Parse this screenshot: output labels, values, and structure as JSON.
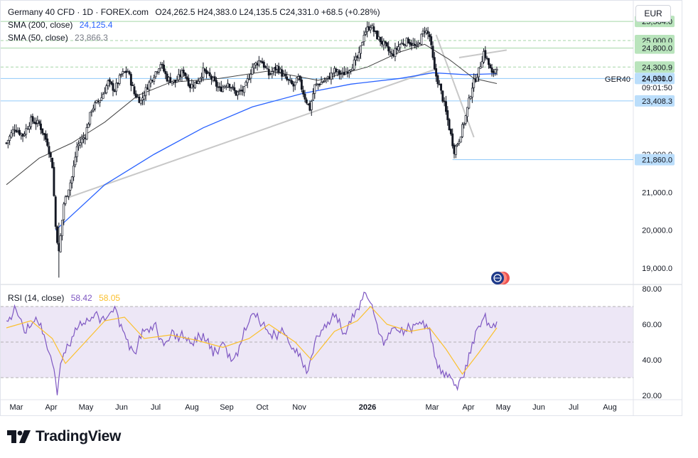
{
  "header": {
    "title": "Germany 40 CFD · 1D · FOREX.com",
    "ohlc": "O24,262.5  H24,383.0  L24,135.5  C24,331.0  +68.5 (+0.28%)",
    "sma200_label": "SMA (200, close)",
    "sma200_value": "24,125.4",
    "sma50_label": "SMA (50, close)",
    "sma50_value": "23,866.3",
    "currency": "EUR"
  },
  "rsi_legend": {
    "label": "RSI (14, close)",
    "value1": "58.42",
    "value2": "58.05"
  },
  "brand": {
    "name": "TradingView"
  },
  "colors": {
    "up": "#26a69a",
    "down": "#131722",
    "candle": "#131722",
    "sma200": "#2962ff",
    "sma50": "#444444",
    "trendline": "#c8c8c8",
    "rsi": "#7e57c2",
    "rsi_ma": "#fbc02d",
    "rsi_band": "#ede7f6",
    "level_green": "#a5d6a7",
    "level_blue": "#90caf9"
  },
  "chart_data": [
    {
      "type": "candlestick",
      "symbol": "GER40",
      "x_ticks": [
        "Mar",
        "Apr",
        "May",
        "Jun",
        "Jul",
        "Aug",
        "Sep",
        "Oct",
        "Nov",
        "2026",
        "Mar",
        "Apr",
        "May",
        "Jun",
        "Jul",
        "Aug"
      ],
      "y_ticks": [
        "22,000.0",
        "21,000.0",
        "20,000.0",
        "19,000.0"
      ],
      "ylim": [
        18700,
        25900
      ],
      "last_price": "24,331.0",
      "countdown": "09:01:50",
      "price_labels": [
        {
          "text": "25,504.0",
          "value": 25504,
          "style": "green"
        },
        {
          "text": "25,000.0",
          "value": 25000,
          "style": "green"
        },
        {
          "text": "24,800.0",
          "value": 24800,
          "style": "green"
        },
        {
          "text": "24,300.9",
          "value": 24300.9,
          "style": "green"
        },
        {
          "text": "24,000.0",
          "value": 24000,
          "style": "blue"
        },
        {
          "text": "23,408.3",
          "value": 23408.3,
          "style": "blue"
        },
        {
          "text": "21,860.0",
          "value": 21860,
          "style": "blue"
        }
      ],
      "series_close": [
        {
          "t": 0,
          "v": 22300
        },
        {
          "t": 5,
          "v": 22700
        },
        {
          "t": 10,
          "v": 22500
        },
        {
          "t": 15,
          "v": 22900
        },
        {
          "t": 20,
          "v": 22800
        },
        {
          "t": 25,
          "v": 22300
        },
        {
          "t": 28,
          "v": 21700
        },
        {
          "t": 30,
          "v": 20100
        },
        {
          "t": 32,
          "v": 19400
        },
        {
          "t": 35,
          "v": 20700
        },
        {
          "t": 40,
          "v": 21400
        },
        {
          "t": 43,
          "v": 22200
        },
        {
          "t": 48,
          "v": 22500
        },
        {
          "t": 52,
          "v": 23200
        },
        {
          "t": 58,
          "v": 23500
        },
        {
          "t": 62,
          "v": 23900
        },
        {
          "t": 66,
          "v": 23700
        },
        {
          "t": 70,
          "v": 24100
        },
        {
          "t": 74,
          "v": 24200
        },
        {
          "t": 78,
          "v": 23600
        },
        {
          "t": 82,
          "v": 23400
        },
        {
          "t": 86,
          "v": 23800
        },
        {
          "t": 90,
          "v": 24100
        },
        {
          "t": 94,
          "v": 24400
        },
        {
          "t": 98,
          "v": 24000
        },
        {
          "t": 103,
          "v": 23900
        },
        {
          "t": 108,
          "v": 24200
        },
        {
          "t": 112,
          "v": 23800
        },
        {
          "t": 116,
          "v": 23900
        },
        {
          "t": 120,
          "v": 24200
        },
        {
          "t": 125,
          "v": 24000
        },
        {
          "t": 130,
          "v": 23700
        },
        {
          "t": 135,
          "v": 23900
        },
        {
          "t": 140,
          "v": 23600
        },
        {
          "t": 145,
          "v": 23700
        },
        {
          "t": 150,
          "v": 24300
        },
        {
          "t": 155,
          "v": 24500
        },
        {
          "t": 160,
          "v": 24100
        },
        {
          "t": 165,
          "v": 24300
        },
        {
          "t": 170,
          "v": 24000
        },
        {
          "t": 175,
          "v": 23800
        },
        {
          "t": 178,
          "v": 24000
        },
        {
          "t": 182,
          "v": 23500
        },
        {
          "t": 185,
          "v": 23200
        },
        {
          "t": 188,
          "v": 23800
        },
        {
          "t": 192,
          "v": 23900
        },
        {
          "t": 196,
          "v": 24000
        },
        {
          "t": 200,
          "v": 24200
        },
        {
          "t": 205,
          "v": 24100
        },
        {
          "t": 210,
          "v": 24300
        },
        {
          "t": 215,
          "v": 24600
        },
        {
          "t": 218,
          "v": 25200
        },
        {
          "t": 222,
          "v": 25400
        },
        {
          "t": 226,
          "v": 25100
        },
        {
          "t": 230,
          "v": 24900
        },
        {
          "t": 235,
          "v": 24600
        },
        {
          "t": 240,
          "v": 24900
        },
        {
          "t": 245,
          "v": 25000
        },
        {
          "t": 250,
          "v": 24800
        },
        {
          "t": 255,
          "v": 25300
        },
        {
          "t": 258,
          "v": 25100
        },
        {
          "t": 261,
          "v": 24200
        },
        {
          "t": 264,
          "v": 23800
        },
        {
          "t": 267,
          "v": 23300
        },
        {
          "t": 270,
          "v": 22700
        },
        {
          "t": 273,
          "v": 22100
        },
        {
          "t": 276,
          "v": 22400
        },
        {
          "t": 280,
          "v": 23000
        },
        {
          "t": 284,
          "v": 23800
        },
        {
          "t": 288,
          "v": 24200
        },
        {
          "t": 291,
          "v": 24700
        },
        {
          "t": 293,
          "v": 24500
        },
        {
          "t": 296,
          "v": 24100
        },
        {
          "t": 299,
          "v": 24331
        }
      ],
      "sma200": [
        {
          "t": 30,
          "v": 20000
        },
        {
          "t": 60,
          "v": 21200
        },
        {
          "t": 90,
          "v": 22000
        },
        {
          "t": 120,
          "v": 22700
        },
        {
          "t": 150,
          "v": 23250
        },
        {
          "t": 180,
          "v": 23600
        },
        {
          "t": 210,
          "v": 23850
        },
        {
          "t": 240,
          "v": 24000
        },
        {
          "t": 260,
          "v": 24150
        },
        {
          "t": 280,
          "v": 24100
        },
        {
          "t": 299,
          "v": 24125.4
        }
      ],
      "sma50": [
        {
          "t": 0,
          "v": 21200
        },
        {
          "t": 20,
          "v": 21900
        },
        {
          "t": 40,
          "v": 22300
        },
        {
          "t": 60,
          "v": 22850
        },
        {
          "t": 80,
          "v": 23550
        },
        {
          "t": 100,
          "v": 23900
        },
        {
          "t": 130,
          "v": 24000
        },
        {
          "t": 160,
          "v": 24200
        },
        {
          "t": 190,
          "v": 23950
        },
        {
          "t": 220,
          "v": 24300
        },
        {
          "t": 240,
          "v": 24700
        },
        {
          "t": 255,
          "v": 24900
        },
        {
          "t": 270,
          "v": 24500
        },
        {
          "t": 285,
          "v": 24000
        },
        {
          "t": 299,
          "v": 23866.3
        }
      ],
      "trendlines": [
        {
          "from": {
            "t": 37,
            "v": 20850
          },
          "to": {
            "t": 262,
            "v": 24250
          }
        },
        {
          "from": {
            "t": 276,
            "v": 24550
          },
          "to": {
            "t": 305,
            "v": 24750
          }
        },
        {
          "from": {
            "t": 262,
            "v": 25150
          },
          "to": {
            "t": 285,
            "v": 22450
          }
        }
      ]
    },
    {
      "type": "line",
      "indicator": "RSI (14, close)",
      "y_ticks": [
        "80.00",
        "60.00",
        "40.00",
        "20.00"
      ],
      "ylim": [
        18,
        82
      ],
      "band": [
        30,
        70
      ],
      "midline": 50,
      "rsi": [
        {
          "t": 0,
          "v": 62
        },
        {
          "t": 6,
          "v": 68
        },
        {
          "t": 12,
          "v": 55
        },
        {
          "t": 18,
          "v": 64
        },
        {
          "t": 24,
          "v": 50
        },
        {
          "t": 28,
          "v": 38
        },
        {
          "t": 31,
          "v": 24
        },
        {
          "t": 34,
          "v": 40
        },
        {
          "t": 38,
          "v": 48
        },
        {
          "t": 42,
          "v": 58
        },
        {
          "t": 48,
          "v": 60
        },
        {
          "t": 54,
          "v": 66
        },
        {
          "t": 60,
          "v": 62
        },
        {
          "t": 66,
          "v": 70
        },
        {
          "t": 72,
          "v": 55
        },
        {
          "t": 78,
          "v": 44
        },
        {
          "t": 84,
          "v": 56
        },
        {
          "t": 90,
          "v": 60
        },
        {
          "t": 96,
          "v": 48
        },
        {
          "t": 102,
          "v": 56
        },
        {
          "t": 108,
          "v": 52
        },
        {
          "t": 114,
          "v": 48
        },
        {
          "t": 120,
          "v": 55
        },
        {
          "t": 126,
          "v": 42
        },
        {
          "t": 132,
          "v": 50
        },
        {
          "t": 138,
          "v": 40
        },
        {
          "t": 144,
          "v": 52
        },
        {
          "t": 150,
          "v": 66
        },
        {
          "t": 156,
          "v": 60
        },
        {
          "t": 162,
          "v": 52
        },
        {
          "t": 168,
          "v": 58
        },
        {
          "t": 174,
          "v": 46
        },
        {
          "t": 180,
          "v": 40
        },
        {
          "t": 184,
          "v": 34
        },
        {
          "t": 188,
          "v": 50
        },
        {
          "t": 194,
          "v": 60
        },
        {
          "t": 200,
          "v": 64
        },
        {
          "t": 206,
          "v": 55
        },
        {
          "t": 212,
          "v": 64
        },
        {
          "t": 218,
          "v": 78
        },
        {
          "t": 222,
          "v": 72
        },
        {
          "t": 226,
          "v": 60
        },
        {
          "t": 230,
          "v": 48
        },
        {
          "t": 236,
          "v": 58
        },
        {
          "t": 242,
          "v": 54
        },
        {
          "t": 248,
          "v": 60
        },
        {
          "t": 254,
          "v": 62
        },
        {
          "t": 258,
          "v": 58
        },
        {
          "t": 262,
          "v": 40
        },
        {
          "t": 266,
          "v": 34
        },
        {
          "t": 270,
          "v": 32
        },
        {
          "t": 274,
          "v": 26
        },
        {
          "t": 278,
          "v": 30
        },
        {
          "t": 282,
          "v": 44
        },
        {
          "t": 286,
          "v": 56
        },
        {
          "t": 290,
          "v": 62
        },
        {
          "t": 292,
          "v": 66
        },
        {
          "t": 295,
          "v": 58
        },
        {
          "t": 299,
          "v": 58.42
        }
      ],
      "rsi_ma": [
        {
          "t": 0,
          "v": 58
        },
        {
          "t": 15,
          "v": 62
        },
        {
          "t": 28,
          "v": 52
        },
        {
          "t": 36,
          "v": 38
        },
        {
          "t": 46,
          "v": 48
        },
        {
          "t": 60,
          "v": 62
        },
        {
          "t": 72,
          "v": 64
        },
        {
          "t": 84,
          "v": 52
        },
        {
          "t": 100,
          "v": 54
        },
        {
          "t": 116,
          "v": 51
        },
        {
          "t": 132,
          "v": 47
        },
        {
          "t": 148,
          "v": 52
        },
        {
          "t": 160,
          "v": 60
        },
        {
          "t": 176,
          "v": 50
        },
        {
          "t": 186,
          "v": 40
        },
        {
          "t": 200,
          "v": 56
        },
        {
          "t": 214,
          "v": 62
        },
        {
          "t": 222,
          "v": 70
        },
        {
          "t": 232,
          "v": 60
        },
        {
          "t": 246,
          "v": 56
        },
        {
          "t": 258,
          "v": 58
        },
        {
          "t": 268,
          "v": 46
        },
        {
          "t": 278,
          "v": 32
        },
        {
          "t": 288,
          "v": 44
        },
        {
          "t": 299,
          "v": 58.05
        }
      ]
    }
  ]
}
